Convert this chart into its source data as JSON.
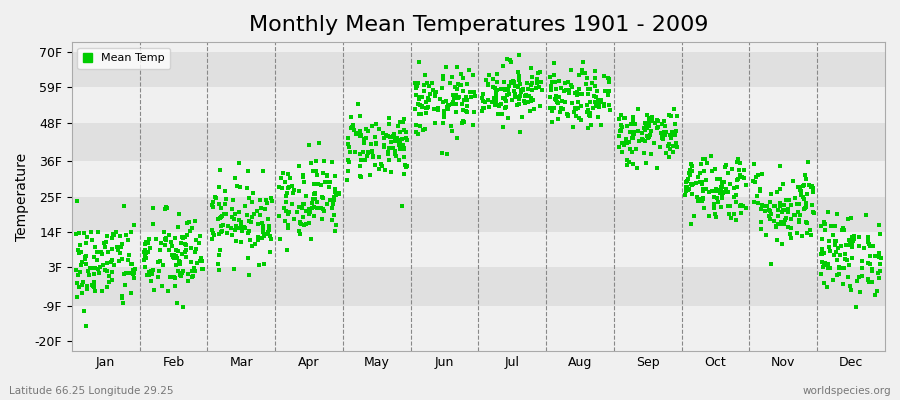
{
  "title": "Monthly Mean Temperatures 1901 - 2009",
  "ylabel": "Temperature",
  "yticks": [
    -20,
    -9,
    3,
    14,
    25,
    36,
    48,
    59,
    70
  ],
  "ytick_labels": [
    "-20F",
    "-9F",
    "3F",
    "14F",
    "25F",
    "36F",
    "48F",
    "59F",
    "70F"
  ],
  "ylim": [
    -23,
    73
  ],
  "months": [
    "Jan",
    "Feb",
    "Mar",
    "Apr",
    "May",
    "Jun",
    "Jul",
    "Aug",
    "Sep",
    "Oct",
    "Nov",
    "Dec"
  ],
  "dot_color": "#00cc00",
  "background_color": "#f0f0f0",
  "plot_bg_color": "#f0f0f0",
  "band_color_1": "#f0f0f0",
  "band_color_2": "#e0e0e0",
  "legend_label": "Mean Temp",
  "bottom_left": "Latitude 66.25 Longitude 29.25",
  "bottom_right": "worldspecies.org",
  "title_fontsize": 16,
  "label_fontsize": 9,
  "dot_size": 5,
  "monthly_means_c": [
    -15.6,
    -14.4,
    -7.8,
    -3.9,
    5.0,
    12.2,
    14.4,
    12.8,
    6.7,
    -2.2,
    -5.6,
    -13.9
  ],
  "monthly_stds_c": [
    4.0,
    4.0,
    3.5,
    3.5,
    3.0,
    3.0,
    2.5,
    2.5,
    2.5,
    3.0,
    3.5,
    3.5
  ],
  "n_years": 109,
  "seed": 42
}
